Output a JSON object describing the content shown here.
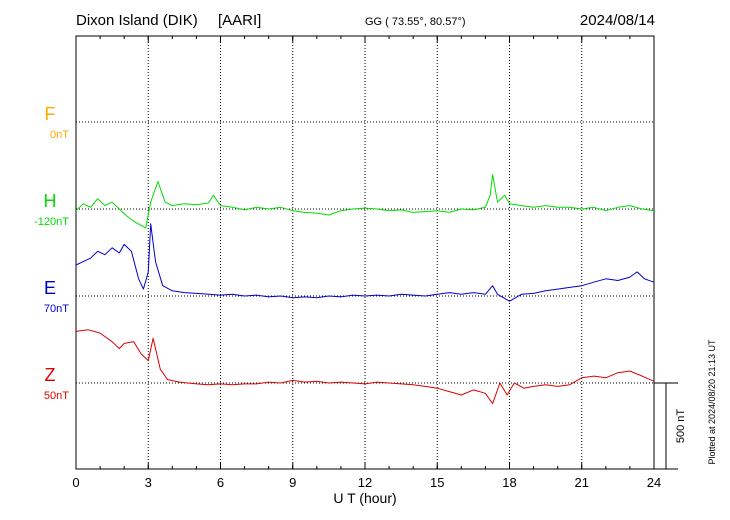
{
  "header": {
    "station": "Dixon Island (DIK)",
    "institute": "[AARI]",
    "coords": "GG ( 73.55°,  80.57°)",
    "date": "2024/08/14"
  },
  "footer": {
    "plotted": "Plotted at 2024/08/20 21:13 UT",
    "scale_label": "500 nT"
  },
  "colors": {
    "F": "#ffaa00",
    "H": "#00dd00",
    "E": "#0000cc",
    "Z": "#dd0000"
  },
  "chart_data": {
    "type": "line",
    "xlabel": "U T (hour)",
    "xlim": [
      0,
      24
    ],
    "xticks": [
      "0",
      "3",
      "6",
      "9",
      "12",
      "15",
      "18",
      "21",
      "24"
    ],
    "scale_bar_nT": 500,
    "series": [
      {
        "key": "F",
        "name": "F",
        "baseline_label": "0nT",
        "color": "#ffaa00",
        "points": []
      },
      {
        "key": "H",
        "name": "H",
        "baseline_label": "-120nT",
        "color": "#00dd00",
        "points": [
          [
            0.0,
            -10
          ],
          [
            0.3,
            30
          ],
          [
            0.6,
            10
          ],
          [
            0.9,
            60
          ],
          [
            1.2,
            20
          ],
          [
            1.5,
            40
          ],
          [
            1.8,
            0
          ],
          [
            2.1,
            -40
          ],
          [
            2.5,
            -80
          ],
          [
            2.9,
            -110
          ],
          [
            3.1,
            40
          ],
          [
            3.4,
            160
          ],
          [
            3.7,
            40
          ],
          [
            4.0,
            20
          ],
          [
            4.5,
            30
          ],
          [
            5.0,
            25
          ],
          [
            5.5,
            35
          ],
          [
            5.7,
            80
          ],
          [
            6.0,
            20
          ],
          [
            6.5,
            10
          ],
          [
            7.0,
            -5
          ],
          [
            7.5,
            10
          ],
          [
            8.0,
            0
          ],
          [
            8.5,
            10
          ],
          [
            9.0,
            -10
          ],
          [
            9.5,
            -20
          ],
          [
            10.0,
            -25
          ],
          [
            10.5,
            -35
          ],
          [
            11.0,
            -10
          ],
          [
            11.5,
            0
          ],
          [
            12.0,
            5
          ],
          [
            12.5,
            0
          ],
          [
            13.0,
            -10
          ],
          [
            13.5,
            -5
          ],
          [
            14.0,
            -20
          ],
          [
            14.5,
            -15
          ],
          [
            15.0,
            -10
          ],
          [
            15.5,
            -20
          ],
          [
            16.0,
            0
          ],
          [
            16.5,
            -5
          ],
          [
            17.0,
            10
          ],
          [
            17.2,
            80
          ],
          [
            17.3,
            200
          ],
          [
            17.5,
            40
          ],
          [
            17.8,
            80
          ],
          [
            18.0,
            30
          ],
          [
            18.5,
            20
          ],
          [
            19.0,
            10
          ],
          [
            19.5,
            20
          ],
          [
            20.0,
            10
          ],
          [
            20.5,
            10
          ],
          [
            21.0,
            0
          ],
          [
            21.5,
            10
          ],
          [
            22.0,
            -10
          ],
          [
            22.5,
            10
          ],
          [
            23.0,
            20
          ],
          [
            23.5,
            0
          ],
          [
            24.0,
            -10
          ]
        ]
      },
      {
        "key": "E",
        "name": "E",
        "baseline_label": "70nT",
        "color": "#0000cc",
        "points": [
          [
            0.0,
            180
          ],
          [
            0.3,
            200
          ],
          [
            0.6,
            220
          ],
          [
            0.9,
            260
          ],
          [
            1.2,
            240
          ],
          [
            1.5,
            280
          ],
          [
            1.8,
            250
          ],
          [
            2.0,
            300
          ],
          [
            2.3,
            260
          ],
          [
            2.6,
            100
          ],
          [
            2.8,
            40
          ],
          [
            3.0,
            140
          ],
          [
            3.1,
            420
          ],
          [
            3.3,
            200
          ],
          [
            3.6,
            60
          ],
          [
            4.0,
            30
          ],
          [
            4.5,
            20
          ],
          [
            5.0,
            15
          ],
          [
            5.5,
            10
          ],
          [
            6.0,
            5
          ],
          [
            6.5,
            10
          ],
          [
            7.0,
            0
          ],
          [
            7.5,
            5
          ],
          [
            8.0,
            -5
          ],
          [
            8.5,
            0
          ],
          [
            9.0,
            -10
          ],
          [
            9.5,
            -5
          ],
          [
            10.0,
            -10
          ],
          [
            10.5,
            0
          ],
          [
            11.0,
            -5
          ],
          [
            11.5,
            5
          ],
          [
            12.0,
            0
          ],
          [
            12.5,
            5
          ],
          [
            13.0,
            0
          ],
          [
            13.5,
            10
          ],
          [
            14.0,
            5
          ],
          [
            14.5,
            0
          ],
          [
            15.0,
            10
          ],
          [
            15.5,
            20
          ],
          [
            16.0,
            10
          ],
          [
            16.5,
            20
          ],
          [
            17.0,
            10
          ],
          [
            17.3,
            60
          ],
          [
            17.5,
            10
          ],
          [
            18.0,
            -30
          ],
          [
            18.5,
            10
          ],
          [
            19.0,
            15
          ],
          [
            19.5,
            30
          ],
          [
            20.0,
            40
          ],
          [
            20.5,
            50
          ],
          [
            21.0,
            60
          ],
          [
            21.5,
            80
          ],
          [
            22.0,
            100
          ],
          [
            22.5,
            90
          ],
          [
            23.0,
            110
          ],
          [
            23.3,
            140
          ],
          [
            23.6,
            100
          ],
          [
            24.0,
            80
          ]
        ]
      },
      {
        "key": "Z",
        "name": "Z",
        "baseline_label": "50nT",
        "color": "#dd0000",
        "points": [
          [
            0.0,
            300
          ],
          [
            0.5,
            310
          ],
          [
            1.0,
            290
          ],
          [
            1.5,
            240
          ],
          [
            1.8,
            200
          ],
          [
            2.0,
            230
          ],
          [
            2.4,
            240
          ],
          [
            2.7,
            170
          ],
          [
            3.0,
            130
          ],
          [
            3.2,
            260
          ],
          [
            3.5,
            80
          ],
          [
            3.8,
            20
          ],
          [
            4.3,
            5
          ],
          [
            5.0,
            -5
          ],
          [
            5.5,
            -10
          ],
          [
            6.0,
            -5
          ],
          [
            6.5,
            -10
          ],
          [
            7.0,
            -5
          ],
          [
            7.5,
            -5
          ],
          [
            8.0,
            5
          ],
          [
            8.5,
            0
          ],
          [
            9.0,
            15
          ],
          [
            9.5,
            5
          ],
          [
            10.0,
            10
          ],
          [
            10.5,
            0
          ],
          [
            11.0,
            5
          ],
          [
            11.5,
            0
          ],
          [
            12.0,
            -5
          ],
          [
            12.5,
            5
          ],
          [
            13.0,
            0
          ],
          [
            13.5,
            -5
          ],
          [
            14.0,
            -10
          ],
          [
            14.5,
            -20
          ],
          [
            15.0,
            -30
          ],
          [
            15.5,
            -50
          ],
          [
            16.0,
            -70
          ],
          [
            16.5,
            -40
          ],
          [
            17.0,
            -60
          ],
          [
            17.3,
            -120
          ],
          [
            17.6,
            0
          ],
          [
            17.9,
            -70
          ],
          [
            18.2,
            0
          ],
          [
            18.6,
            -30
          ],
          [
            19.0,
            -20
          ],
          [
            19.5,
            -10
          ],
          [
            20.0,
            -20
          ],
          [
            20.5,
            -10
          ],
          [
            21.0,
            30
          ],
          [
            21.5,
            40
          ],
          [
            22.0,
            30
          ],
          [
            22.5,
            60
          ],
          [
            23.0,
            70
          ],
          [
            23.5,
            40
          ],
          [
            24.0,
            10
          ]
        ]
      }
    ]
  }
}
